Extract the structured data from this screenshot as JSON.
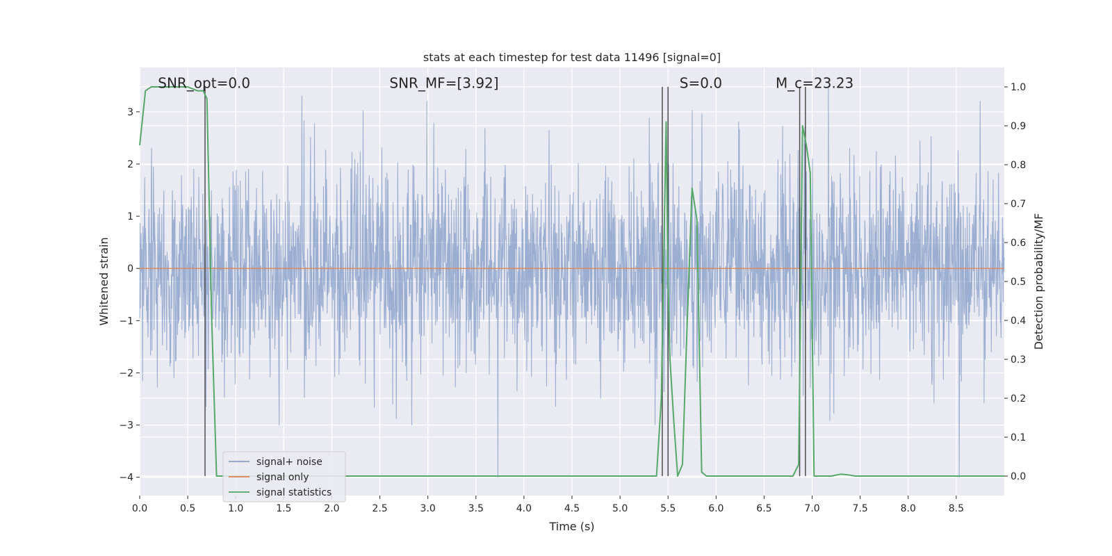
{
  "chart_data": {
    "type": "line",
    "title": "stats at each timestep for test data 11496 [signal=0]",
    "xlabel": "Time (s)",
    "ylabel": "Whitened strain",
    "y2label": "Detection probability/MF",
    "xlim": [
      0.0,
      9.0
    ],
    "ylim": [
      -4.35,
      3.85
    ],
    "y2lim": [
      -0.05,
      1.05
    ],
    "xticks": [
      0.0,
      0.5,
      1.0,
      1.5,
      2.0,
      2.5,
      3.0,
      3.5,
      4.0,
      4.5,
      5.0,
      5.5,
      6.0,
      6.5,
      7.0,
      7.5,
      8.0,
      8.5
    ],
    "xtick_labels": [
      "0.0",
      "0.5",
      "1.0",
      "1.5",
      "2.0",
      "2.5",
      "3.0",
      "3.5",
      "4.0",
      "4.5",
      "5.0",
      "5.5",
      "6.0",
      "6.5",
      "7.0",
      "7.5",
      "8.0",
      "8.5"
    ],
    "yticks": [
      -4,
      -3,
      -2,
      -1,
      0,
      1,
      2,
      3
    ],
    "ytick_labels": [
      "−4",
      "−3",
      "−2",
      "−1",
      "0",
      "1",
      "2",
      "3"
    ],
    "y2ticks": [
      0.0,
      0.1,
      0.2,
      0.3,
      0.4,
      0.5,
      0.6,
      0.7,
      0.8,
      0.9,
      1.0
    ],
    "y2tick_labels": [
      "0.0",
      "0.1",
      "0.2",
      "0.3",
      "0.4",
      "0.5",
      "0.6",
      "0.7",
      "0.8",
      "0.9",
      "1.0"
    ],
    "grid": true,
    "legend_position": "lower-left",
    "annotations": [
      {
        "text": "SNR_opt=0.0",
        "x": 0.19,
        "y": 3.55
      },
      {
        "text": "SNR_MF=[3.92]",
        "x": 2.6,
        "y": 3.55
      },
      {
        "text": "S=0.0",
        "x": 5.62,
        "y": 3.55
      },
      {
        "text": "M_c=23.23",
        "x": 6.62,
        "y": 3.55
      }
    ],
    "vlines": [
      0.68,
      5.44,
      5.5,
      6.87,
      6.93
    ],
    "series": [
      {
        "name": "signal+ noise",
        "color": "#4c72b0",
        "axis": "left",
        "kind": "noise",
        "seed": 11496,
        "n": 2400,
        "std": 0.95,
        "spikes": [
          {
            "x": 3.73,
            "y": -4.0
          },
          {
            "x": 8.53,
            "y": -4.0
          },
          {
            "x": 1.69,
            "y": 3.3
          },
          {
            "x": 2.99,
            "y": 3.2
          },
          {
            "x": 7.17,
            "y": 3.5
          },
          {
            "x": 8.75,
            "y": 3.2
          }
        ]
      },
      {
        "name": "signal only",
        "color": "#dd8452",
        "axis": "left",
        "x": [
          0.0,
          9.0
        ],
        "y": [
          0.0,
          0.0
        ]
      },
      {
        "name": "signal statistics",
        "color": "#55a868",
        "axis": "right",
        "x": [
          0.0,
          0.06,
          0.12,
          0.2,
          0.35,
          0.5,
          0.6,
          0.66,
          0.7,
          0.75,
          0.8,
          0.9,
          1.5,
          2.5,
          3.5,
          4.5,
          5.0,
          5.38,
          5.43,
          5.48,
          5.5,
          5.52,
          5.56,
          5.6,
          5.65,
          5.7,
          5.75,
          5.8,
          5.85,
          5.9,
          6.0,
          6.5,
          6.8,
          6.86,
          6.9,
          6.94,
          6.98,
          7.02,
          7.06,
          7.1,
          7.2,
          7.3,
          7.38,
          7.45,
          8.0,
          8.5,
          9.0
        ],
        "y": [
          0.85,
          0.99,
          1.0,
          1.0,
          1.0,
          1.0,
          0.99,
          0.99,
          0.97,
          0.4,
          0.0,
          0.0,
          0.0,
          0.0,
          0.0,
          0.0,
          0.0,
          0.0,
          0.2,
          0.91,
          0.5,
          0.3,
          0.14,
          0.0,
          0.03,
          0.4,
          0.74,
          0.66,
          0.01,
          0.0,
          0.0,
          0.0,
          0.0,
          0.03,
          0.9,
          0.85,
          0.78,
          0.0,
          0.0,
          0.0,
          0.0,
          0.005,
          0.003,
          0.0,
          0.0,
          0.0,
          0.0
        ]
      }
    ]
  }
}
